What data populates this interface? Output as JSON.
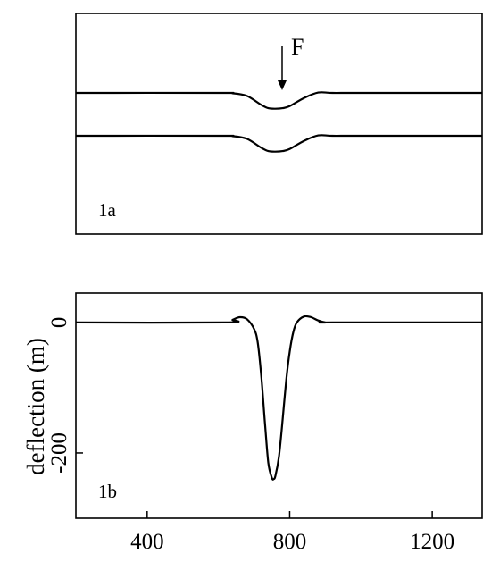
{
  "chart_data": [
    {
      "panel": "1a",
      "type": "line",
      "label": "1a",
      "annotation": "F",
      "x": [
        200,
        600,
        640,
        680,
        720,
        740,
        760,
        780,
        800,
        840,
        880,
        920,
        1000,
        1340
      ],
      "series": [
        {
          "values": [
            0.0,
            0.0,
            0.02,
            0.18,
            0.7,
            0.9,
            0.93,
            0.9,
            0.78,
            0.3,
            -0.02,
            0.0,
            0.0,
            0.0
          ]
        },
        {
          "values": [
            0.0,
            0.0,
            0.02,
            0.18,
            0.7,
            0.9,
            0.93,
            0.9,
            0.78,
            0.3,
            -0.02,
            0.0,
            0.0,
            0.0
          ]
        }
      ]
    },
    {
      "panel": "1b",
      "type": "line",
      "label": "1b",
      "ylabel": "deflection (m)",
      "xlim": [
        200,
        1340
      ],
      "ylim": [
        -300,
        45
      ],
      "x_ticks": [
        400,
        800,
        1200
      ],
      "y_ticks": [
        0,
        -200
      ],
      "x": [
        200,
        620,
        640,
        660,
        680,
        700,
        710,
        720,
        730,
        740,
        750,
        755,
        760,
        770,
        780,
        790,
        800,
        810,
        820,
        840,
        860,
        880,
        900,
        920,
        1340
      ],
      "series": [
        {
          "values": [
            0,
            0,
            4,
            8,
            5,
            -10,
            -30,
            -80,
            -150,
            -215,
            -238,
            -240,
            -235,
            -205,
            -150,
            -90,
            -45,
            -15,
            0,
            9,
            8,
            3,
            0,
            0,
            0
          ]
        }
      ]
    }
  ]
}
